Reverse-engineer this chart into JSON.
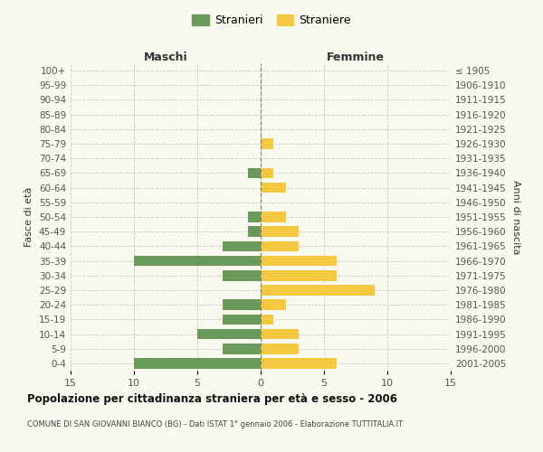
{
  "age_groups": [
    "100+",
    "95-99",
    "90-94",
    "85-89",
    "80-84",
    "75-79",
    "70-74",
    "65-69",
    "60-64",
    "55-59",
    "50-54",
    "45-49",
    "40-44",
    "35-39",
    "30-34",
    "25-29",
    "20-24",
    "15-19",
    "10-14",
    "5-9",
    "0-4"
  ],
  "birth_years": [
    "≤ 1905",
    "1906-1910",
    "1911-1915",
    "1916-1920",
    "1921-1925",
    "1926-1930",
    "1931-1935",
    "1936-1940",
    "1941-1945",
    "1946-1950",
    "1951-1955",
    "1956-1960",
    "1961-1965",
    "1966-1970",
    "1971-1975",
    "1976-1980",
    "1981-1985",
    "1986-1990",
    "1991-1995",
    "1996-2000",
    "2001-2005"
  ],
  "maschi": [
    0,
    0,
    0,
    0,
    0,
    0,
    0,
    1,
    0,
    0,
    1,
    1,
    3,
    10,
    3,
    0,
    3,
    3,
    5,
    3,
    10
  ],
  "femmine": [
    0,
    0,
    0,
    0,
    0,
    1,
    0,
    1,
    2,
    0,
    2,
    3,
    3,
    6,
    6,
    9,
    2,
    1,
    3,
    3,
    6
  ],
  "color_maschi": "#6a9a5a",
  "color_femmine": "#f5c842",
  "title": "Popolazione per cittadinanza straniera per età e sesso - 2006",
  "subtitle": "COMUNE DI SAN GIOVANNI BIANCO (BG) - Dati ISTAT 1° gennaio 2006 - Elaborazione TUTTITALIA.IT",
  "xlabel_left": "Maschi",
  "xlabel_right": "Femmine",
  "ylabel_left": "Fasce di età",
  "ylabel_right": "Anni di nascita",
  "xlim": 15,
  "legend_stranieri": "Stranieri",
  "legend_straniere": "Straniere",
  "bg_color": "#f9f9f0",
  "grid_color": "#ccccbb"
}
